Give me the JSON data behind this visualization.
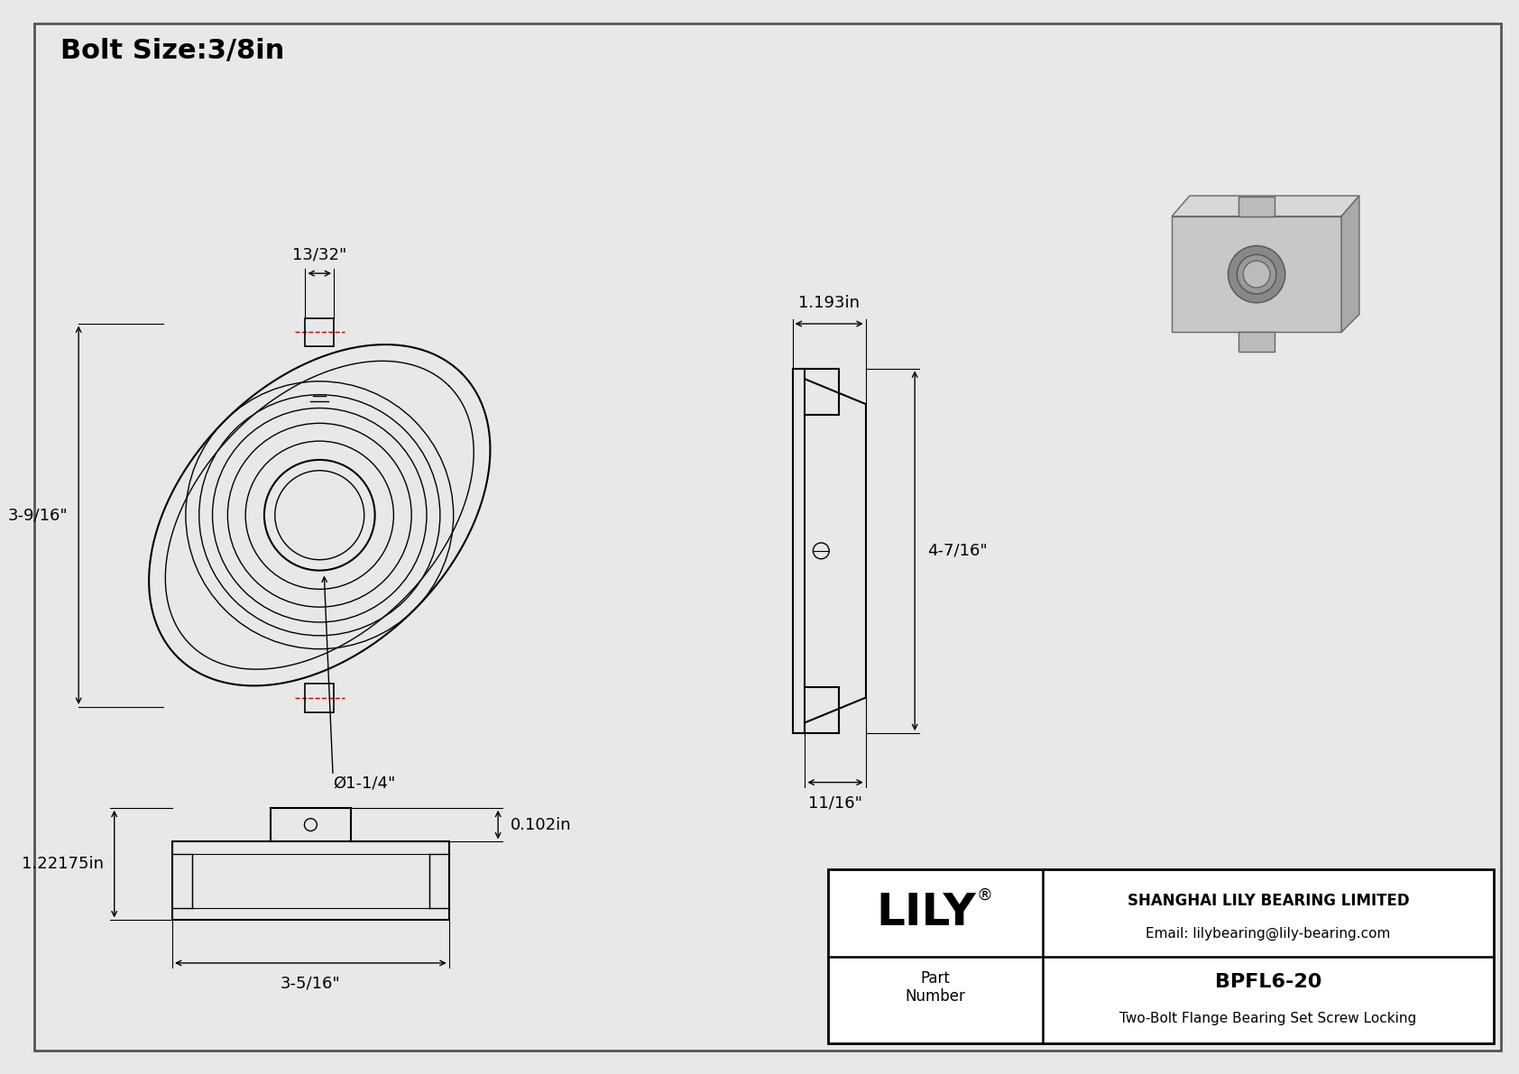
{
  "bg_color": "#e8e8e8",
  "border_color": "#333333",
  "line_color": "#000000",
  "dim_color": "#000000",
  "red_dash_color": "#cc0000",
  "title": "Bolt Size:3/8in",
  "title_fontsize": 22,
  "dim_fontsize": 13,
  "label_fontsize": 11,
  "company_name": "SHANGHAI LILY BEARING LIMITED",
  "email": "Email: lilybearing@lily-bearing.com",
  "part_number": "BPFL6-20",
  "part_description": "Two-Bolt Flange Bearing Set Screw Locking",
  "lily_text": "LILY",
  "dim_13_32": "13/32\"",
  "dim_3_9_16": "3-9/16\"",
  "dim_1_1_4": "Ø1-1/4\"",
  "dim_1193": "1.193in",
  "dim_4_7_16": "4-7/16\"",
  "dim_11_16": "11/16\"",
  "dim_0102": "0.102in",
  "dim_122175": "1.22175in",
  "dim_3_5_16": "3-5/16\""
}
